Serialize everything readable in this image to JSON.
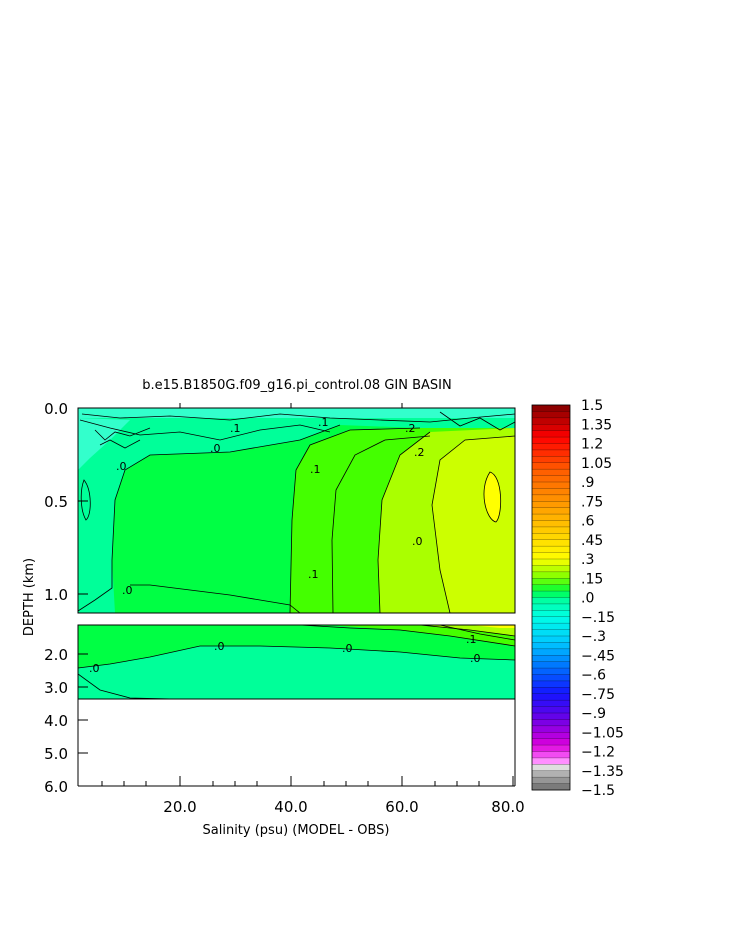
{
  "chart_data": {
    "type": "heatmap",
    "title": "b.e15.B1850G.f09_g16.pi_control.08 GIN BASIN",
    "xlabel": "Salinity (psu) (MODEL - OBS)",
    "ylabel": "DEPTH (km)",
    "xlim": [
      2,
      80.5
    ],
    "x_ticks": [
      "20.0",
      "40.0",
      "60.0",
      "80.0"
    ],
    "upper_panel": {
      "ylim": [
        0,
        1.1
      ],
      "y_ticks": [
        "0.0",
        "0.5",
        "1.0"
      ]
    },
    "lower_panel": {
      "ylim": [
        1.1,
        6.0
      ],
      "y_ticks": [
        "2.0",
        "3.0",
        "4.0",
        "5.0",
        "6.0"
      ]
    },
    "contour_labels": [
      ".1",
      ".0",
      ".1",
      ".2",
      ".0",
      ".0",
      ".1",
      ".2",
      ".1",
      ".0",
      ".0",
      ".0",
      ".0",
      ".1",
      ".0"
    ],
    "colorbar": {
      "min": -1.5,
      "max": 1.5,
      "labels": [
        "1.5",
        "1.35",
        "1.2",
        "1.05",
        ".9",
        ".75",
        ".6",
        ".45",
        ".3",
        ".15",
        ".0",
        "−.15",
        "−.3",
        "−.45",
        "−.6",
        "−.75",
        "−.9",
        "−1.05",
        "−1.2",
        "−1.35",
        "−1.5"
      ]
    },
    "colors": {
      "zero_band": "#00ff99",
      "slight_pos": "#00ff44",
      "pos_01": "#44ff00",
      "pos_02": "#aaff00",
      "pos_025": "#ccff00",
      "pos_03": "#ffff00"
    }
  }
}
